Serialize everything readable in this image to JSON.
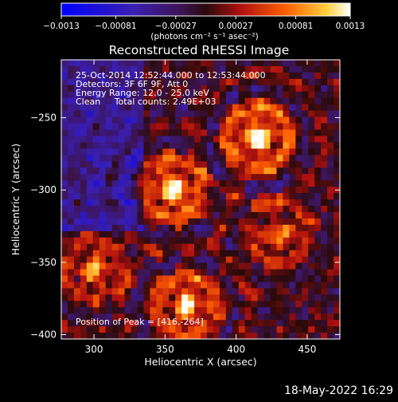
{
  "chart_data": {
    "type": "heatmap",
    "title": "Reconstructed RHESSI Image",
    "xlabel": "Heliocentric X (arcsec)",
    "ylabel": "Heliocentric Y (arcsec)",
    "xlim": [
      277,
      473
    ],
    "ylim": [
      -403,
      -210
    ],
    "x_ticks": [
      300,
      350,
      400,
      450
    ],
    "y_ticks": [
      -250,
      -300,
      -350,
      -400
    ],
    "x_tick_labels": [
      "300",
      "350",
      "400",
      "450"
    ],
    "y_tick_labels": [
      "−250",
      "−300",
      "−350",
      "−400"
    ],
    "colorbar": {
      "min": -0.0013,
      "max": 0.0013,
      "tick_values": [
        -0.0013,
        -0.00081,
        -0.00027,
        0.00027,
        0.00081,
        0.0013
      ],
      "tick_labels": [
        "−0.0013",
        "−0.00081",
        "−0.00027",
        "0.00027",
        "0.00081",
        "0.0013"
      ],
      "units": "(photons cm⁻² s⁻¹ asec⁻²)"
    },
    "annotations": [
      "25-Oct-2014 12:52:44.000 to 12:53:44.000",
      "Detectors: 3F 6F 9F, Att 0",
      "Energy Range: 12.0 - 25.0 keV",
      "Clean     Total counts: 2.49E+03"
    ],
    "peak_label": "Position of Peak = [416,-264]",
    "peak_position": [
      416,
      -264
    ],
    "sources": [
      {
        "x": 355,
        "y": -300,
        "value": 0.0012
      },
      {
        "x": 416,
        "y": -264,
        "value": 0.0013
      },
      {
        "x": 365,
        "y": -380,
        "value": 0.0011
      },
      {
        "x": 300,
        "y": -355,
        "value": 0.0008
      },
      {
        "x": 430,
        "y": -330,
        "value": 0.0007
      }
    ],
    "grid": false
  },
  "footer": {
    "timestamp": "18-May-2022 16:29"
  }
}
